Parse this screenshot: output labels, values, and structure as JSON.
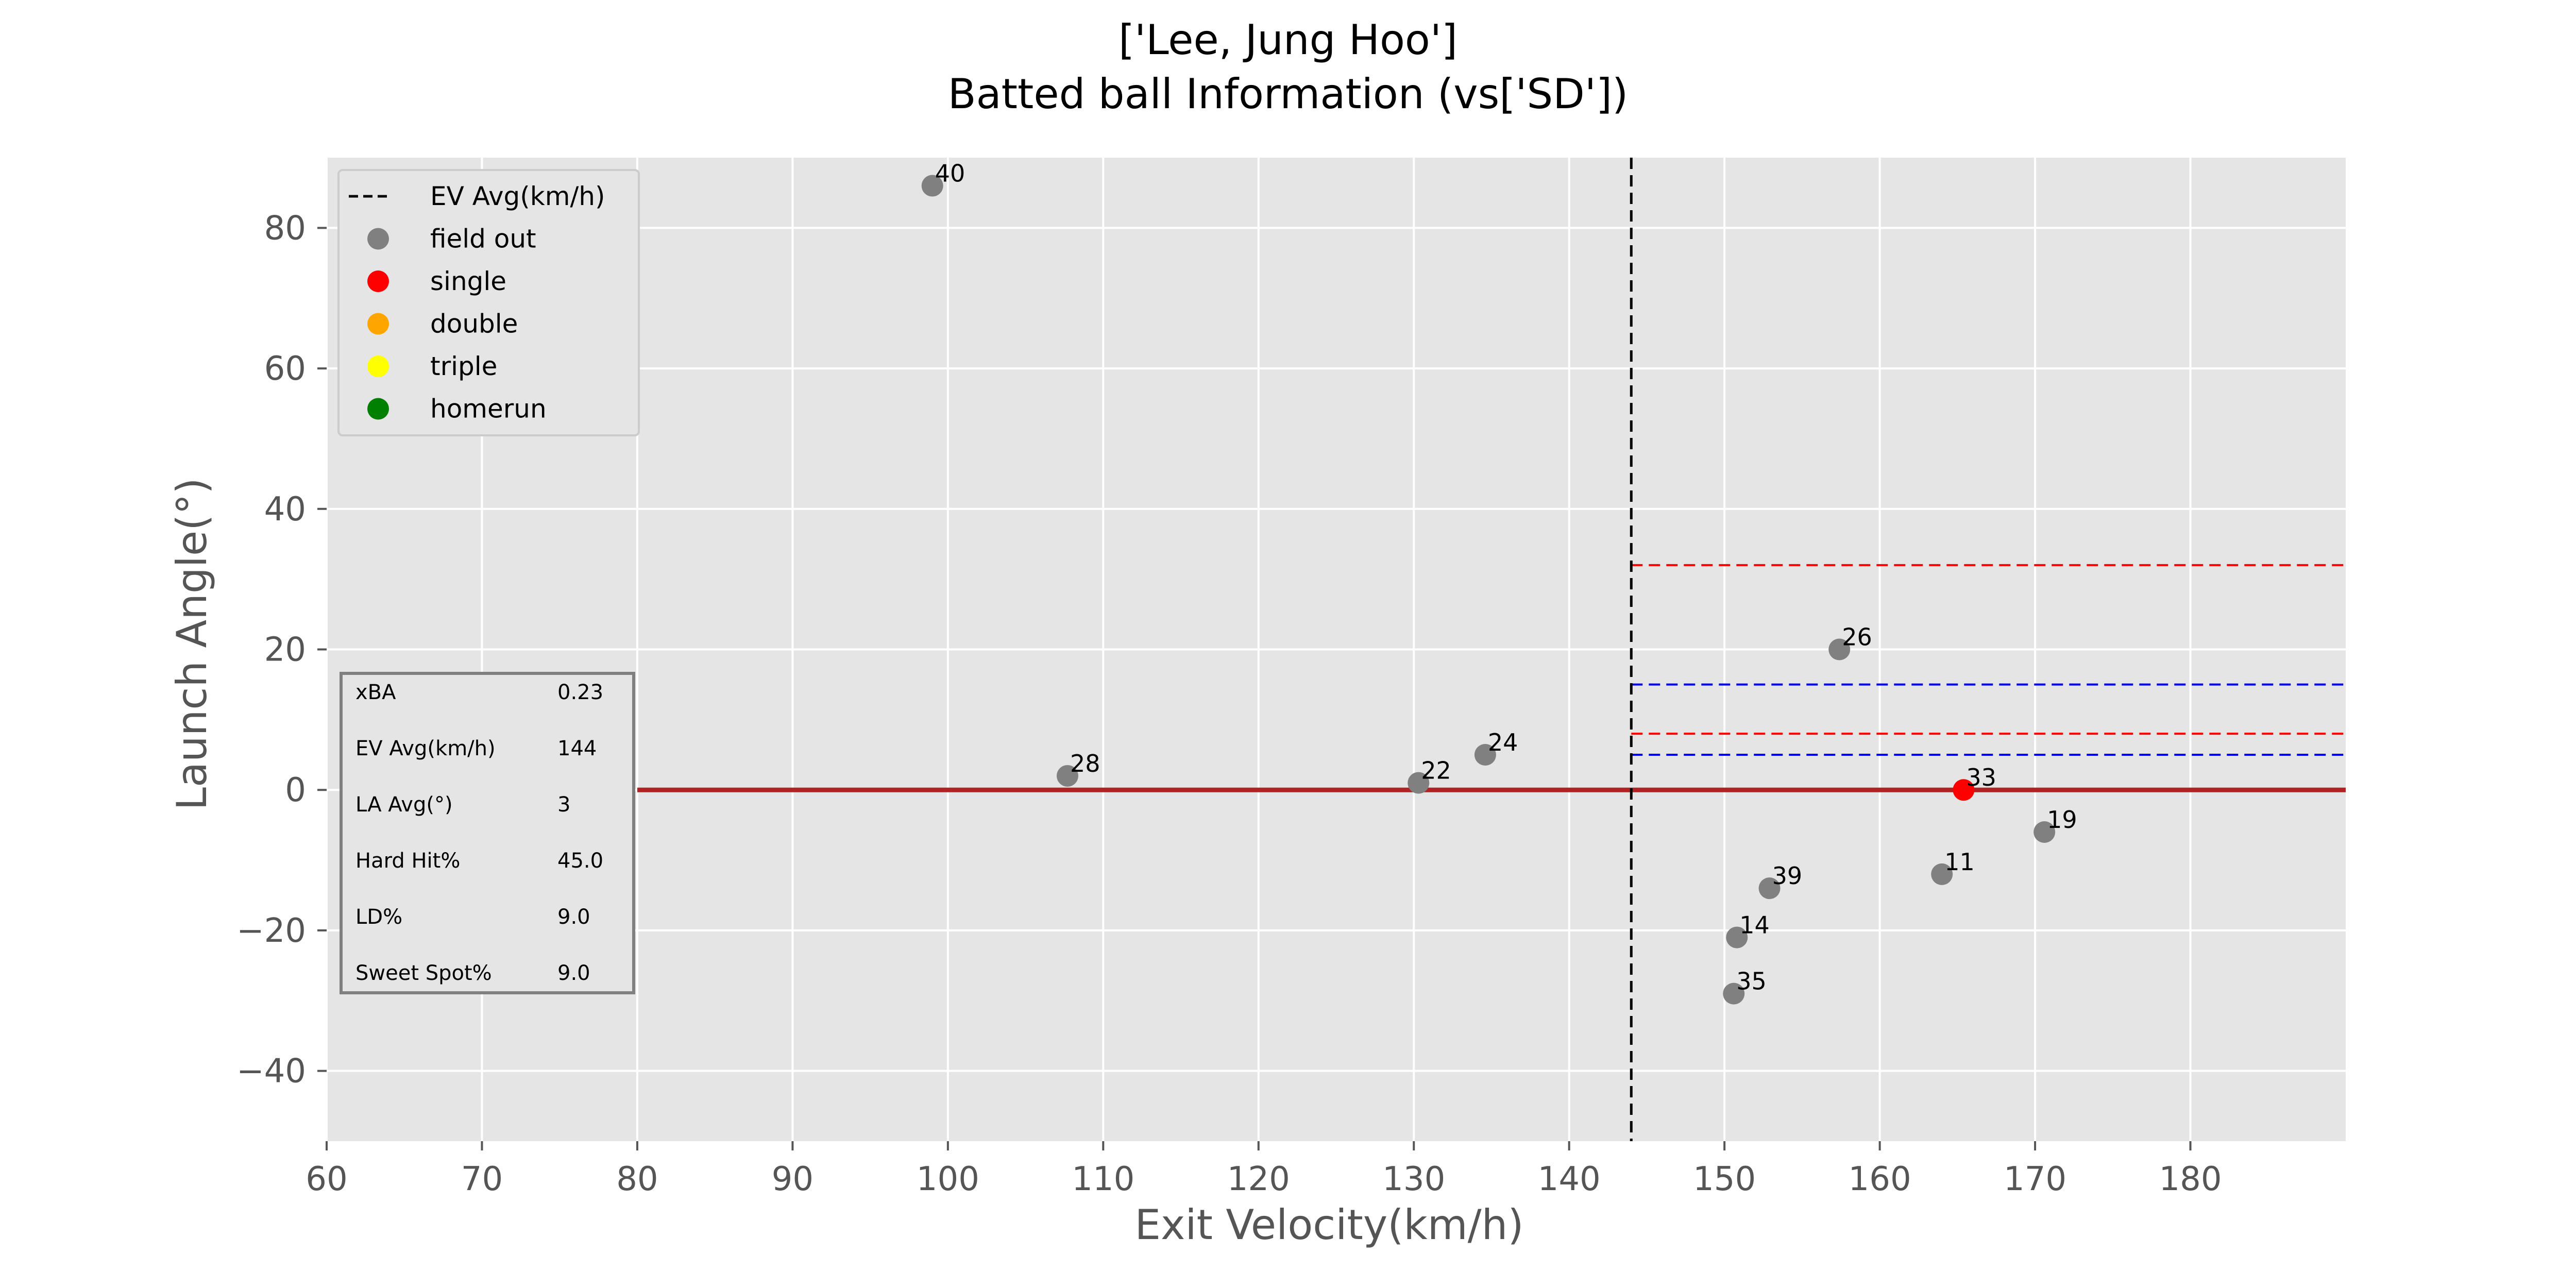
{
  "chart_data": {
    "type": "scatter",
    "title": "['Lee, Jung Hoo']",
    "subtitle": "Batted ball Information (vs['SD'])",
    "xlabel": "Exit Velocity(km/h)",
    "ylabel": "Launch Angle(°)",
    "xlim": [
      60,
      190
    ],
    "ylim": [
      -50,
      90
    ],
    "xticks": [
      60,
      70,
      80,
      90,
      100,
      110,
      120,
      130,
      140,
      150,
      160,
      170,
      180
    ],
    "yticks": [
      -40,
      -20,
      0,
      20,
      40,
      60,
      80
    ],
    "grid": true,
    "legend_position": "top-left",
    "legend": [
      {
        "label": "EV Avg(km/h)",
        "style": "dashed-line",
        "color": "#000000"
      },
      {
        "label": "field out",
        "style": "marker",
        "color": "#808080"
      },
      {
        "label": "single",
        "style": "marker",
        "color": "#ff0000"
      },
      {
        "label": "double",
        "style": "marker",
        "color": "#ffa500"
      },
      {
        "label": "triple",
        "style": "marker",
        "color": "#ffff00"
      },
      {
        "label": "homerun",
        "style": "marker",
        "color": "#008000"
      }
    ],
    "points": [
      {
        "label": "40",
        "x": 99,
        "y": 86,
        "result": "field out",
        "color": "#808080"
      },
      {
        "label": "28",
        "x": 107.7,
        "y": 2,
        "result": "field out",
        "color": "#808080"
      },
      {
        "label": "22",
        "x": 130.3,
        "y": 1,
        "result": "field out",
        "color": "#808080"
      },
      {
        "label": "24",
        "x": 134.6,
        "y": 5,
        "result": "field out",
        "color": "#808080"
      },
      {
        "label": "26",
        "x": 157.4,
        "y": 20,
        "result": "field out",
        "color": "#808080"
      },
      {
        "label": "33",
        "x": 165.4,
        "y": 0,
        "result": "single",
        "color": "#ff0000"
      },
      {
        "label": "19",
        "x": 170.6,
        "y": -6,
        "result": "field out",
        "color": "#808080"
      },
      {
        "label": "11",
        "x": 164,
        "y": -12,
        "result": "field out",
        "color": "#808080"
      },
      {
        "label": "39",
        "x": 152.9,
        "y": -14,
        "result": "field out",
        "color": "#808080"
      },
      {
        "label": "14",
        "x": 150.8,
        "y": -21,
        "result": "field out",
        "color": "#808080"
      },
      {
        "label": "35",
        "x": 150.6,
        "y": -29,
        "result": "field out",
        "color": "#808080"
      }
    ],
    "reference_lines": {
      "ev_avg_x": 144,
      "zero_line": {
        "y": 0,
        "x_start": 80,
        "color": "#b22222"
      },
      "red_dashed_y": [
        32,
        8
      ],
      "blue_dashed_y": [
        15,
        5
      ],
      "red_color": "#ff0000",
      "blue_color": "#0000ff"
    },
    "stats_table": [
      {
        "name": "xBA",
        "value": "0.23"
      },
      {
        "name": "EV Avg(km/h)",
        "value": "144"
      },
      {
        "name": "LA Avg(°)",
        "value": "3"
      },
      {
        "name": "Hard Hit%",
        "value": "45.0"
      },
      {
        "name": "LD%",
        "value": "9.0"
      },
      {
        "name": "Sweet Spot%",
        "value": "9.0"
      }
    ],
    "colors": {
      "plot_background": "#e5e5e5",
      "grid": "#ffffff"
    }
  }
}
